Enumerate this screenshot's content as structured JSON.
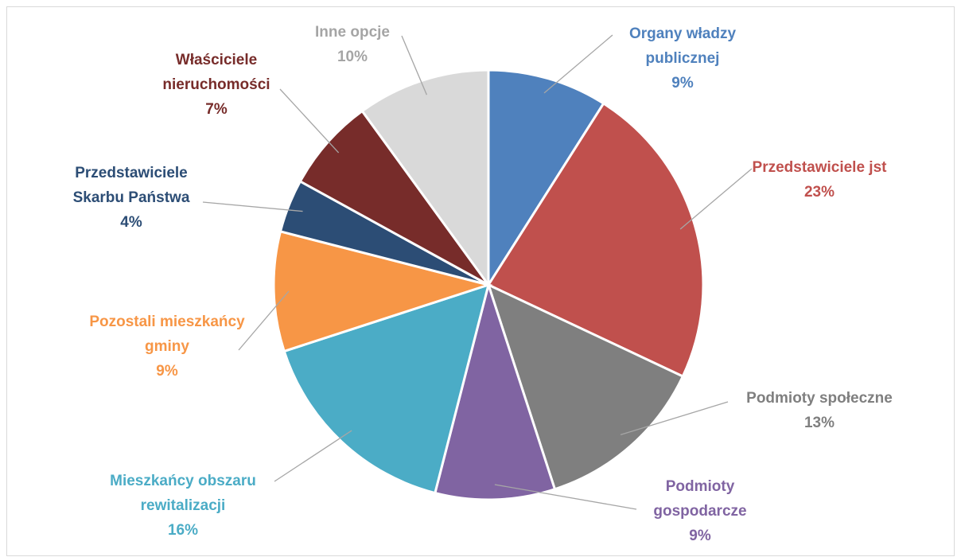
{
  "chart_data": {
    "type": "pie",
    "categories": [
      "Organy władzy publicznej",
      "Przedstawiciele jst",
      "Podmioty społeczne",
      "Podmioty gospodarcze",
      "Mieszkańcy obszaru rewitalizacji",
      "Pozostali mieszkańcy gminy",
      "Przedstawiciele Skarbu Państwa",
      "Właściciele nieruchomości",
      "Inne opcje"
    ],
    "values": [
      9,
      23,
      13,
      9,
      16,
      9,
      4,
      7,
      10
    ],
    "value_labels": [
      "9%",
      "23%",
      "13%",
      "9%",
      "16%",
      "9%",
      "4%",
      "7%",
      "10%"
    ],
    "colors": [
      "#4f81bd",
      "#c0504d",
      "#7f7f7f",
      "#8064a2",
      "#4bacc6",
      "#f79646",
      "#2c4d75",
      "#772c2a",
      "#d9d9d9"
    ],
    "label_colors": [
      "#4f81bd",
      "#c0504d",
      "#7f7f7f",
      "#8064a2",
      "#4bacc6",
      "#f79646",
      "#2c4d75",
      "#772c2a",
      "#a5a5a5"
    ]
  }
}
